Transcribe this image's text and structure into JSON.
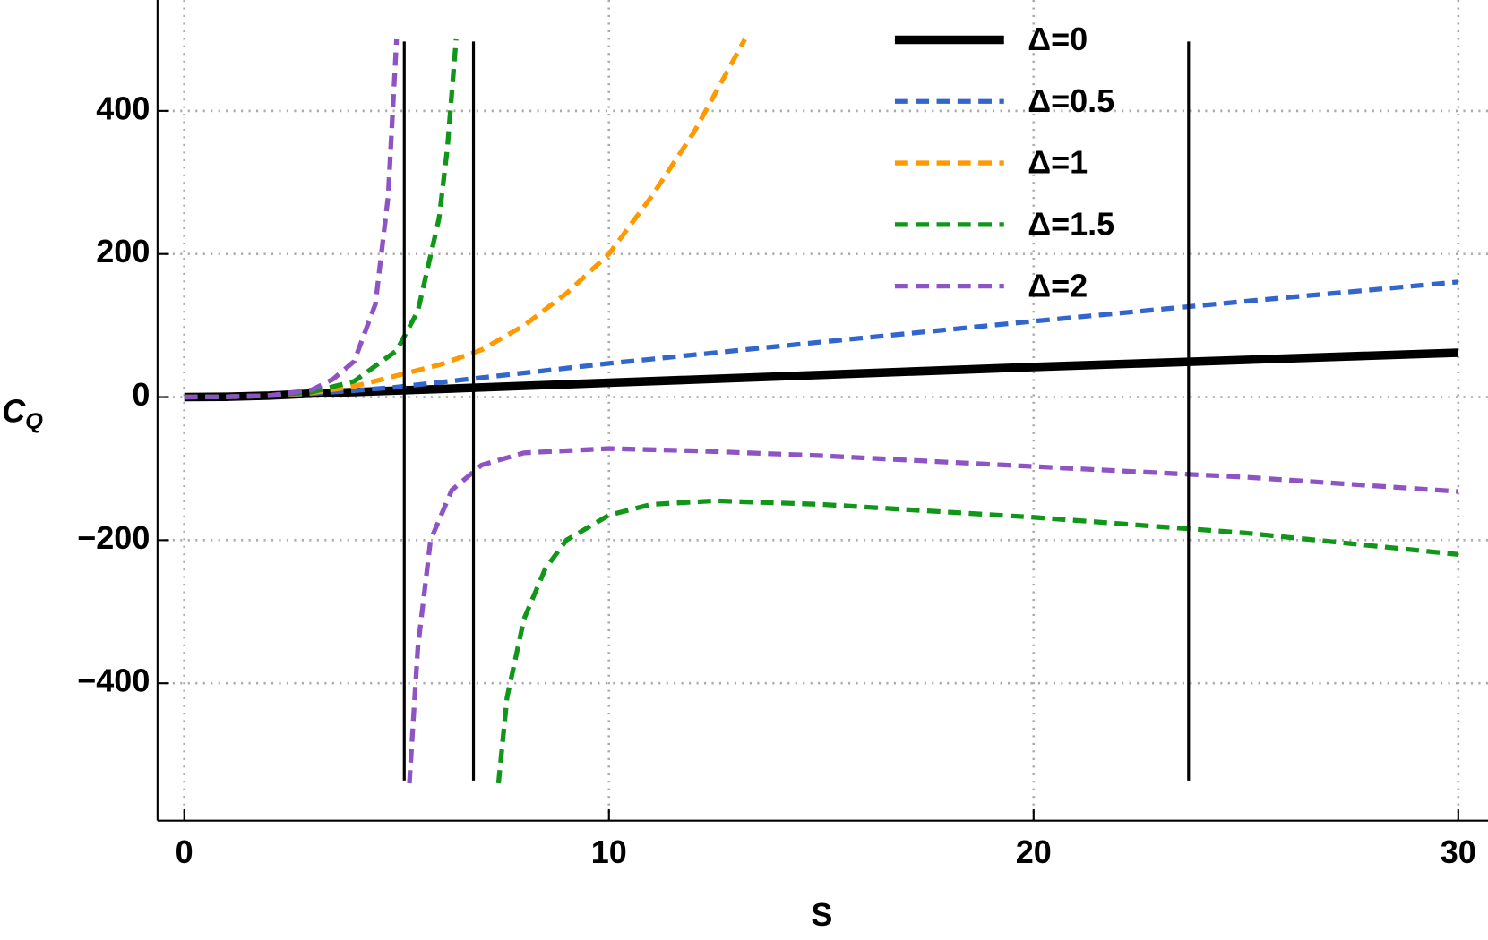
{
  "chart_data": {
    "type": "line",
    "xlabel": "S",
    "ylabel": {
      "main": "C",
      "sub": "Q"
    },
    "xlim": [
      -0.63,
      30.7
    ],
    "ylim": [
      -592,
      555
    ],
    "xticks": [
      0,
      10,
      20,
      30
    ],
    "yticks": [
      {
        "value": -400,
        "label": "−400"
      },
      {
        "value": -200,
        "label": "−200"
      },
      0,
      200,
      400
    ],
    "grid": true,
    "legend": "upper right",
    "vertical_lines": {
      "color": "#000000",
      "x": [
        5.18,
        6.81,
        23.65
      ],
      "ymin": -536,
      "ymax": 497
    },
    "series": [
      {
        "name": "Δ=0",
        "color": "#000000",
        "dashed": false,
        "x": [
          0,
          1,
          2,
          3,
          5,
          10,
          15,
          20,
          25,
          30
        ],
        "values": [
          0,
          0.5,
          2,
          5,
          9,
          20,
          31,
          42,
          52,
          62
        ]
      },
      {
        "name": "Δ=0.5",
        "color": "#3366cc",
        "dashed": true,
        "x": [
          0,
          1,
          2,
          3,
          4,
          5,
          7,
          10,
          15,
          20,
          25,
          30
        ],
        "values": [
          0,
          0.5,
          2,
          5,
          9,
          14,
          27,
          47,
          77,
          106,
          134,
          161
        ]
      },
      {
        "name": "Δ=1",
        "color": "#ff9900",
        "dashed": true,
        "x": [
          0,
          1,
          2,
          3,
          4,
          5,
          6,
          7,
          8,
          9,
          10,
          11,
          12,
          13.2
        ],
        "values": [
          0,
          0.5,
          2,
          6,
          15,
          30,
          45,
          66,
          100,
          145,
          200,
          280,
          370,
          500
        ]
      },
      {
        "name": "Δ=1.5",
        "color": "#109618",
        "dashed": true,
        "x": [
          0,
          1,
          2,
          3,
          4,
          5,
          5.5,
          6,
          6.2,
          6.4,
          6.9,
          7.4,
          7.6,
          8,
          8.5,
          9,
          10,
          11,
          12.5,
          15,
          20,
          25,
          30
        ],
        "values": [
          0,
          0.5,
          2,
          7,
          22,
          65,
          120,
          250,
          350,
          500,
          null,
          -540,
          -420,
          -310,
          -240,
          -200,
          -165,
          -150,
          -145,
          -150,
          -168,
          -190,
          -220
        ]
      },
      {
        "name": "Δ=2",
        "color": "#8e54c4",
        "dashed": true,
        "x": [
          0,
          1,
          2,
          3,
          3.5,
          4,
          4.5,
          4.8,
          5.0,
          5.15,
          5.3,
          5.5,
          5.8,
          6.3,
          7,
          8,
          10,
          12,
          15,
          20,
          25,
          30
        ],
        "values": [
          0,
          0.5,
          2,
          10,
          25,
          50,
          130,
          280,
          500,
          null,
          -540,
          -350,
          -200,
          -130,
          -95,
          -78,
          -72,
          -75,
          -82,
          -97,
          -112,
          -132
        ]
      }
    ]
  }
}
